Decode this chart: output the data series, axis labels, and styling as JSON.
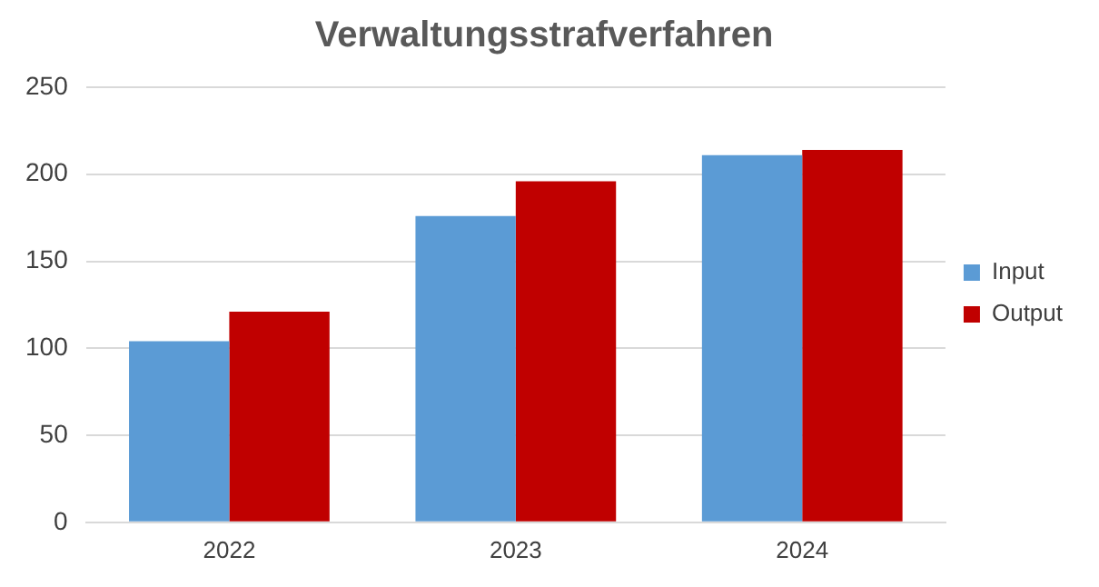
{
  "chart_data": {
    "type": "bar",
    "title": "Verwaltungsstrafverfahren",
    "categories": [
      "2022",
      "2023",
      "2024"
    ],
    "series": [
      {
        "name": "Input",
        "color": "#5b9bd5",
        "values": [
          104,
          176,
          211
        ]
      },
      {
        "name": "Output",
        "color": "#c00000",
        "values": [
          121,
          196,
          214
        ]
      }
    ],
    "ylim": [
      0,
      250
    ],
    "yticks": [
      0,
      50,
      100,
      150,
      200,
      250
    ],
    "grid": "y",
    "legend": "right"
  }
}
